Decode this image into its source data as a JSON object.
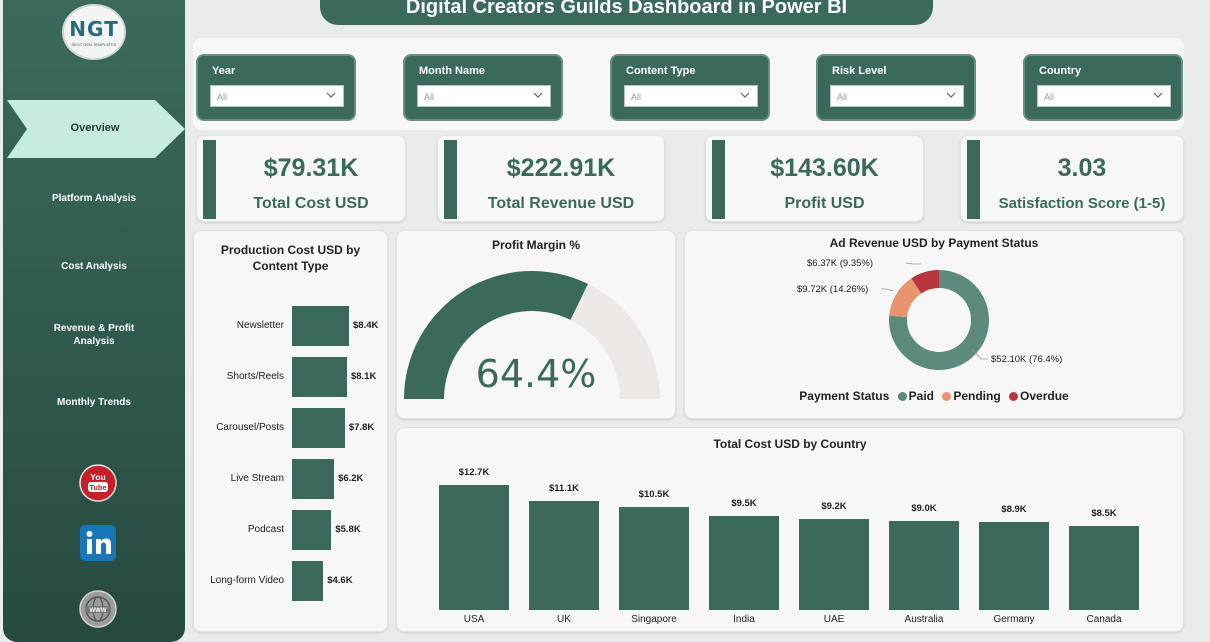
{
  "title": "Digital Creators Guilds Dashboard in Power BI",
  "logo": {
    "mark": "NGT",
    "sub": "NEXT GEN TEMPLATES"
  },
  "nav": {
    "active": "Overview",
    "items": [
      "Platform Analysis",
      "Cost Analysis",
      "Revenue & Profit Analysis",
      "Monthly Trends"
    ]
  },
  "social": [
    "youtube-icon",
    "linkedin-icon",
    "web-icon"
  ],
  "filters": [
    {
      "label": "Year",
      "value": "All"
    },
    {
      "label": "Month Name",
      "value": "All"
    },
    {
      "label": "Content Type",
      "value": "All"
    },
    {
      "label": "Risk Level",
      "value": "All"
    },
    {
      "label": "Country",
      "value": "All"
    }
  ],
  "kpis": [
    {
      "value": "$79.31K",
      "label": "Total Cost USD"
    },
    {
      "value": "$222.91K",
      "label": "Total Revenue USD"
    },
    {
      "value": "$143.60K",
      "label": "Profit USD"
    },
    {
      "value": "3.03",
      "label": "Satisfaction Score (1-5)"
    }
  ],
  "colors": {
    "primary": "#3b6a5c",
    "paid": "#5c8a7c",
    "pending": "#e8956d",
    "overdue": "#b8343f",
    "gauge_track": "#ece9e6"
  },
  "chart_data": [
    {
      "type": "bar",
      "orientation": "horizontal",
      "title": "Production Cost USD by Content Type",
      "categories": [
        "Newsletter",
        "Shorts/Reels",
        "Carousel/Posts",
        "Live Stream",
        "Podcast",
        "Long-form Video"
      ],
      "values": [
        8.4,
        8.1,
        7.8,
        6.2,
        5.8,
        4.6
      ],
      "data_labels": [
        "$8.4K",
        "$8.1K",
        "$7.8K",
        "$6.2K",
        "$5.8K",
        "$4.6K"
      ]
    },
    {
      "type": "gauge",
      "title": "Profit Margin %",
      "value": 64.4,
      "max": 100,
      "display": "64.4%"
    },
    {
      "type": "pie",
      "title": "Ad Revenue USD by Payment Status",
      "legend_title": "Payment Status",
      "categories": [
        "Paid",
        "Pending",
        "Overdue"
      ],
      "values": [
        52.1,
        9.72,
        6.37
      ],
      "data_labels": [
        "$52.10K (76.4%)",
        "$9.72K (14.26%)",
        "$6.37K (9.35%)"
      ]
    },
    {
      "type": "bar",
      "title": "Total Cost USD by Country",
      "categories": [
        "USA",
        "UK",
        "Singapore",
        "India",
        "UAE",
        "Australia",
        "Germany",
        "Canada"
      ],
      "values": [
        12.7,
        11.1,
        10.5,
        9.5,
        9.2,
        9.0,
        8.9,
        8.5
      ],
      "data_labels": [
        "$12.7K",
        "$11.1K",
        "$10.5K",
        "$9.5K",
        "$9.2K",
        "$9.0K",
        "$8.9K",
        "$8.5K"
      ]
    }
  ]
}
